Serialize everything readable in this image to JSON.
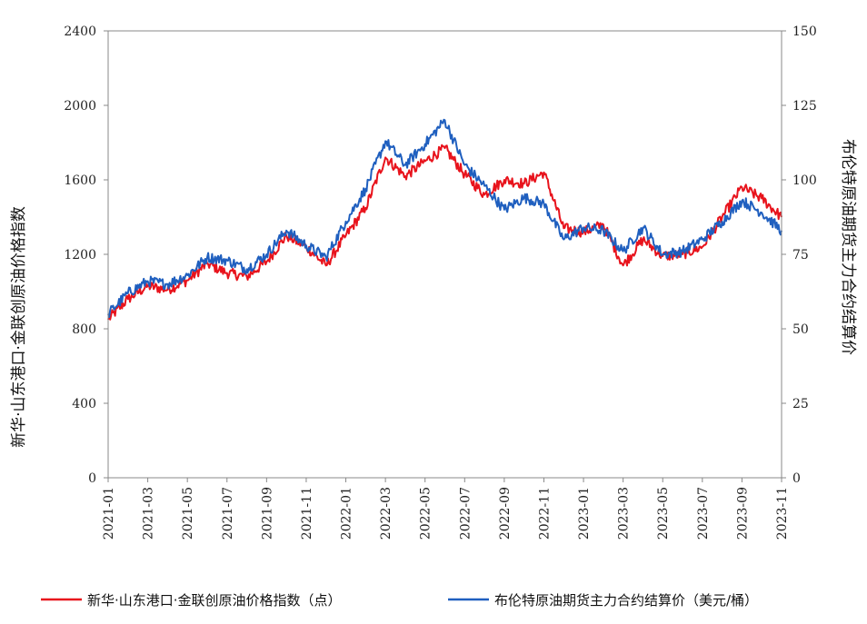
{
  "chart_data": {
    "type": "line",
    "ylabel_left": "新华·山东港口·金联创原油价格指数",
    "ylabel_right": "布伦特原油期货主力合约结算价",
    "y_left_range": [
      0,
      2400
    ],
    "y_left_ticks": [
      "0",
      "400",
      "800",
      "1200",
      "1600",
      "2000",
      "2400"
    ],
    "y_right_range": [
      0,
      150
    ],
    "y_right_ticks": [
      "0",
      "25",
      "50",
      "75",
      "100",
      "125",
      "150"
    ],
    "x_ticks": [
      "2021-01",
      "2021-03",
      "2021-05",
      "2021-07",
      "2021-09",
      "2021-11",
      "2022-01",
      "2022-03",
      "2022-05",
      "2022-07",
      "2022-09",
      "2022-11",
      "2023-01",
      "2023-03",
      "2023-05",
      "2023-07",
      "2023-09",
      "2023-11"
    ],
    "x_range": [
      "2021-01",
      "2023-11"
    ],
    "grid": false,
    "legend_position": "bottom",
    "series": [
      {
        "name": "新华·山东港口·金联创原油价格指数（点）",
        "axis": "left",
        "color": "#e8131c",
        "x": [
          "2021-01",
          "2021-02",
          "2021-03",
          "2021-04",
          "2021-05",
          "2021-06",
          "2021-07",
          "2021-08",
          "2021-09",
          "2021-10",
          "2021-11",
          "2021-12",
          "2022-01",
          "2022-02",
          "2022-03",
          "2022-04",
          "2022-05",
          "2022-06",
          "2022-07",
          "2022-08",
          "2022-09",
          "2022-10",
          "2022-11",
          "2022-12",
          "2023-01",
          "2023-02",
          "2023-03",
          "2023-04",
          "2023-05",
          "2023-06",
          "2023-07",
          "2023-08",
          "2023-09",
          "2023-10",
          "2023-11"
        ],
        "values": [
          850,
          960,
          1030,
          1010,
          1060,
          1150,
          1100,
          1080,
          1160,
          1300,
          1240,
          1140,
          1300,
          1450,
          1720,
          1620,
          1700,
          1770,
          1630,
          1520,
          1600,
          1580,
          1640,
          1340,
          1320,
          1360,
          1140,
          1280,
          1190,
          1200,
          1240,
          1400,
          1560,
          1500,
          1400
        ]
      },
      {
        "name": "布伦特原油期货主力合约结算价（美元/桶）",
        "axis": "right",
        "color": "#1f5fbf",
        "x": [
          "2021-01",
          "2021-02",
          "2021-03",
          "2021-04",
          "2021-05",
          "2021-06",
          "2021-07",
          "2021-08",
          "2021-09",
          "2021-10",
          "2021-11",
          "2021-12",
          "2022-01",
          "2022-02",
          "2022-03",
          "2022-04",
          "2022-05",
          "2022-06",
          "2022-07",
          "2022-08",
          "2022-09",
          "2022-10",
          "2022-11",
          "2022-12",
          "2023-01",
          "2023-02",
          "2023-03",
          "2023-04",
          "2023-05",
          "2023-06",
          "2023-07",
          "2023-08",
          "2023-09",
          "2023-10",
          "2023-11"
        ],
        "values": [
          55,
          62,
          66,
          65,
          68,
          74,
          73,
          70,
          75,
          83,
          78,
          74,
          86,
          97,
          113,
          105,
          112,
          120,
          105,
          98,
          90,
          94,
          92,
          80,
          84,
          83,
          76,
          84,
          75,
          76,
          80,
          86,
          93,
          89,
          83
        ]
      }
    ]
  }
}
